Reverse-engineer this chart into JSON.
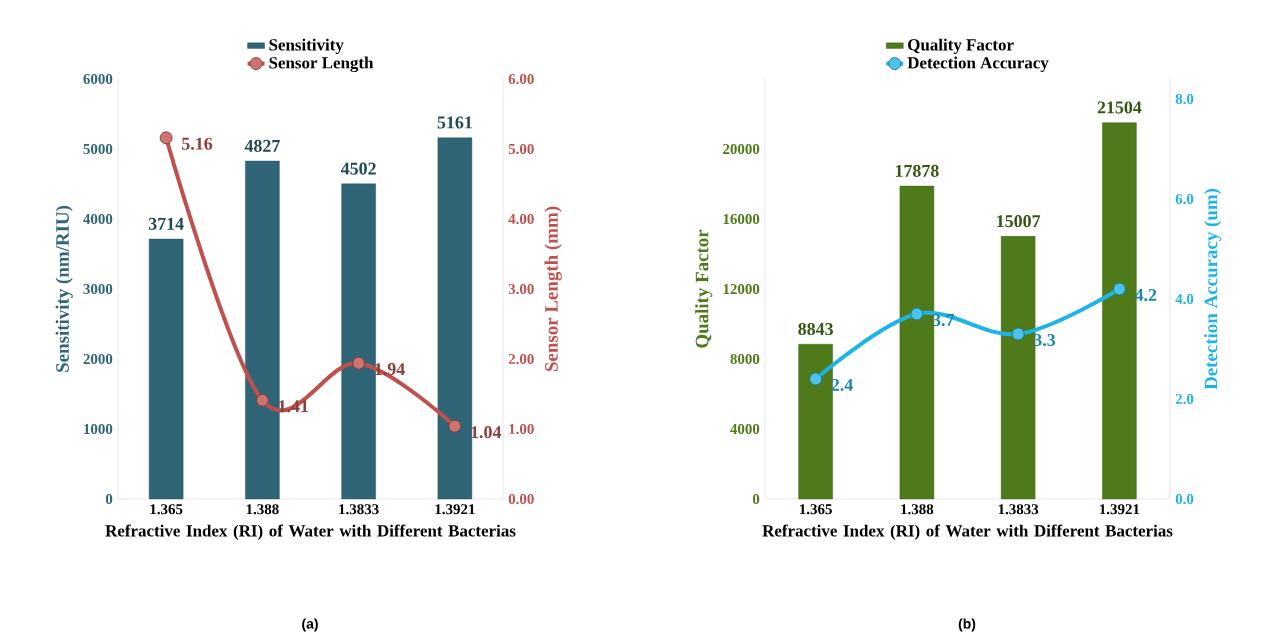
{
  "chart_data": [
    {
      "type": "bar",
      "categories": [
        "1.365",
        "1.388",
        "1.3833",
        "1.3921"
      ],
      "series": [
        {
          "name": "Sensitivity",
          "color": "#2f6576",
          "values": [
            3714,
            4827,
            4502,
            5161
          ]
        },
        {
          "type": "line",
          "name": "Sensor Length",
          "color": "#c0504d",
          "values": [
            5.16,
            1.41,
            1.94,
            1.04
          ],
          "axis": "y2",
          "marker": "circle",
          "line_style": "solid"
        }
      ],
      "xlabel": "Refractive Index (RI) of Water with Different Bacterias",
      "ylabel": "Sensitivity (nm/RIU)",
      "y2label": "Sensor Length (mm)",
      "ylim": [
        0,
        6000
      ],
      "yticks": [
        0,
        1000,
        2000,
        3000,
        4000,
        5000,
        6000
      ],
      "y2lim": [
        0,
        6
      ],
      "y2ticks": [
        {
          "value": 0,
          "label": "0.00"
        },
        {
          "value": 1,
          "label": "1.00"
        },
        {
          "value": 2,
          "label": "2.00"
        },
        {
          "value": 3,
          "label": "3.00"
        },
        {
          "value": 4,
          "label": "4.00"
        },
        {
          "value": 5,
          "label": "5.00"
        },
        {
          "value": 6,
          "label": "6.00"
        }
      ],
      "data_labels": true,
      "legend": "top",
      "annotations": [
        "(a)"
      ]
    },
    {
      "type": "bar",
      "categories": [
        "1.365",
        "1.388",
        "1.3833",
        "1.3921"
      ],
      "series": [
        {
          "name": "Quality Factor",
          "color": "#4f7a1a",
          "values": [
            8843,
            17878,
            15007,
            21504
          ]
        },
        {
          "type": "line",
          "name": "Detection Accuracy",
          "color": "#1fb4e6",
          "values": [
            2.4,
            3.7,
            3.3,
            4.2
          ],
          "axis": "y2",
          "marker": "circle",
          "line_style": "solid"
        }
      ],
      "xlabel": "Refractive Index (RI) of Water with Different Bacterias",
      "ylabel": "Quality Factor",
      "y2label": "Detection Accuracy (um)",
      "ylim": [
        0,
        24000
      ],
      "yticks": [
        0,
        4000,
        8000,
        12000,
        16000,
        20000
      ],
      "y2lim": [
        0,
        8.4
      ],
      "y2ticks": [
        {
          "value": 0,
          "label": "0.0"
        },
        {
          "value": 2,
          "label": "2.0"
        },
        {
          "value": 4,
          "label": "4.0"
        },
        {
          "value": 6,
          "label": "6.0"
        },
        {
          "value": 8,
          "label": "8.0"
        }
      ],
      "data_labels": true,
      "legend": "top",
      "annotations": [
        "(b)"
      ]
    }
  ]
}
